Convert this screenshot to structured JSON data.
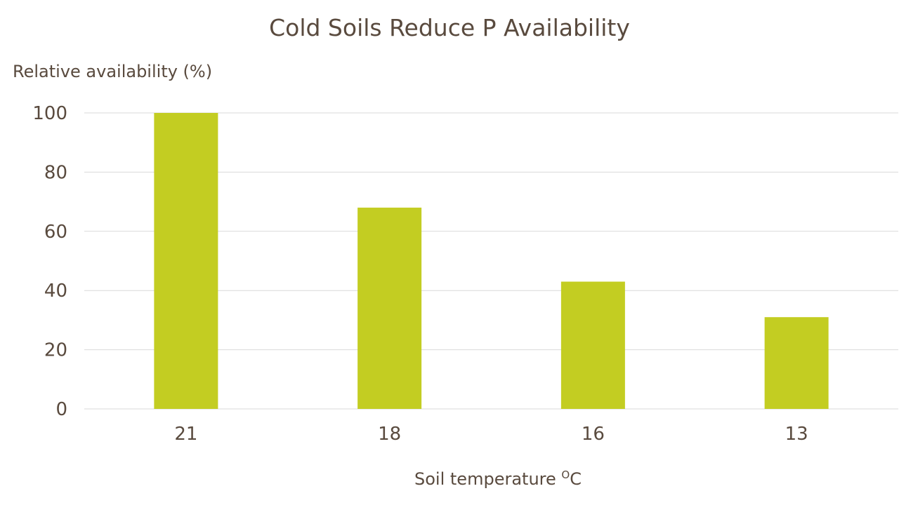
{
  "chart_data": {
    "type": "bar",
    "title": "Cold Soils Reduce P Availability",
    "ylabel": "Relative availability (%)",
    "xlabel": "Soil temperature",
    "xlabel_unit_sup": "O",
    "xlabel_unit": "C",
    "categories": [
      "21",
      "18",
      "16",
      "13"
    ],
    "values": [
      100,
      68,
      43,
      31
    ],
    "ylim": [
      0,
      100
    ],
    "yticks": [
      0,
      20,
      40,
      60,
      80,
      100
    ],
    "grid": true,
    "legend": "none",
    "bar_color": "#c3cd22",
    "grid_color": "#d9d9d9"
  }
}
